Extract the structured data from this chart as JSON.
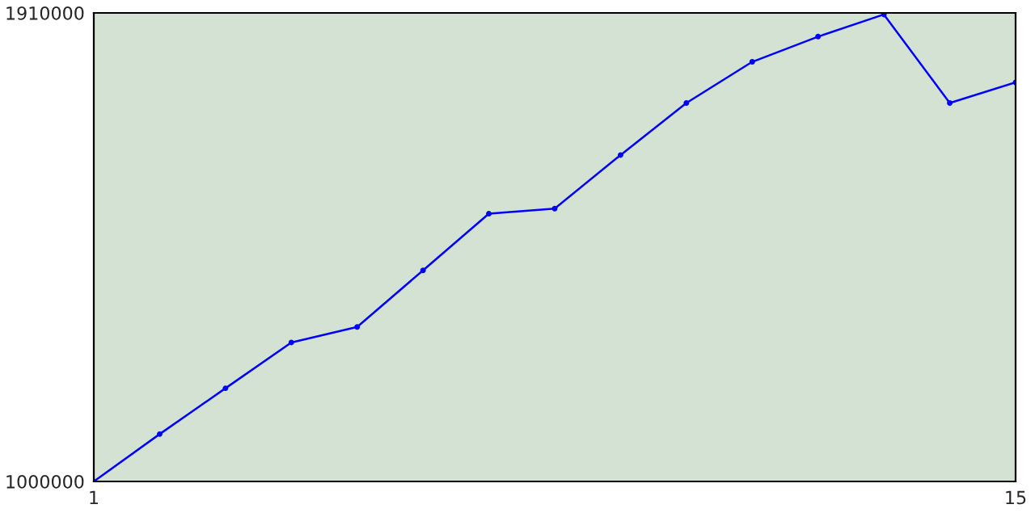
{
  "chart_data": {
    "type": "line",
    "x": [
      1,
      2,
      3,
      4,
      5,
      6,
      7,
      8,
      9,
      10,
      11,
      12,
      13,
      14,
      15
    ],
    "series": [
      {
        "color": "#0000ff",
        "values": [
          1000000,
          1092000,
          1181000,
          1270000,
          1300000,
          1410000,
          1520000,
          1530000,
          1634000,
          1735000,
          1815000,
          1864000,
          1907000,
          1735000,
          1775000
        ]
      }
    ],
    "xlim": [
      1,
      15
    ],
    "xticks": [
      1,
      15
    ],
    "ylim": [
      1000000,
      1910000
    ],
    "yticks": [
      1000000,
      1910000
    ],
    "legend": false,
    "marker": "circle",
    "line_style": "solid"
  }
}
